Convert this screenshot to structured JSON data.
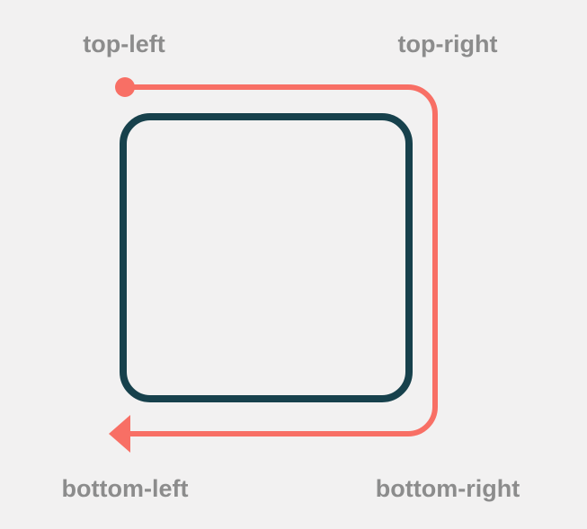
{
  "labels": {
    "top_left": "top-left",
    "top_right": "top-right",
    "bottom_right": "bottom-right",
    "bottom_left": "bottom-left"
  },
  "colors": {
    "background": "#f2f1f1",
    "box_stroke": "#17414c",
    "path_stroke": "#f86f65",
    "label_text": "#8c8c8c"
  }
}
